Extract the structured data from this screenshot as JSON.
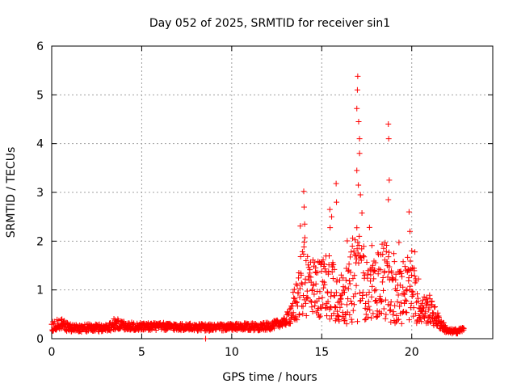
{
  "chart_data": {
    "type": "scatter",
    "title": "Day 052 of 2025, SRMTID for receiver sin1",
    "xlabel": "GPS time / hours",
    "ylabel": "SRMTID / TECUs",
    "xlim": [
      0,
      24.5
    ],
    "ylim": [
      0,
      6
    ],
    "xticks": [
      0,
      5,
      10,
      15,
      20
    ],
    "yticks": [
      0,
      1,
      2,
      3,
      4,
      5,
      6
    ],
    "grid": true,
    "marker": "+",
    "marker_color": "#ff0000",
    "series": [
      {
        "name": "sin1",
        "envelope": [
          {
            "x": 0.0,
            "base": 0.25,
            "spread": 0.1
          },
          {
            "x": 0.5,
            "base": 0.3,
            "spread": 0.12
          },
          {
            "x": 1.0,
            "base": 0.22,
            "spread": 0.08
          },
          {
            "x": 3.0,
            "base": 0.22,
            "spread": 0.08
          },
          {
            "x": 3.5,
            "base": 0.3,
            "spread": 0.12
          },
          {
            "x": 4.5,
            "base": 0.25,
            "spread": 0.08
          },
          {
            "x": 6.0,
            "base": 0.25,
            "spread": 0.08
          },
          {
            "x": 9.0,
            "base": 0.23,
            "spread": 0.07
          },
          {
            "x": 12.0,
            "base": 0.25,
            "spread": 0.08
          },
          {
            "x": 13.0,
            "base": 0.35,
            "spread": 0.08
          },
          {
            "x": 13.5,
            "base": 0.7,
            "spread": 0.4
          },
          {
            "x": 14.0,
            "base": 1.2,
            "spread": 0.8
          },
          {
            "x": 14.5,
            "base": 1.1,
            "spread": 0.6
          },
          {
            "x": 15.0,
            "base": 1.0,
            "spread": 0.6
          },
          {
            "x": 15.5,
            "base": 1.2,
            "spread": 0.8
          },
          {
            "x": 16.0,
            "base": 0.8,
            "spread": 0.5
          },
          {
            "x": 16.5,
            "base": 0.9,
            "spread": 0.6
          },
          {
            "x": 17.0,
            "base": 1.5,
            "spread": 1.2
          },
          {
            "x": 17.5,
            "base": 1.0,
            "spread": 0.6
          },
          {
            "x": 18.0,
            "base": 1.0,
            "spread": 0.6
          },
          {
            "x": 18.5,
            "base": 1.3,
            "spread": 0.9
          },
          {
            "x": 19.0,
            "base": 0.8,
            "spread": 0.5
          },
          {
            "x": 19.5,
            "base": 0.9,
            "spread": 0.6
          },
          {
            "x": 20.0,
            "base": 1.0,
            "spread": 0.7
          },
          {
            "x": 20.5,
            "base": 0.6,
            "spread": 0.3
          },
          {
            "x": 21.0,
            "base": 0.6,
            "spread": 0.3
          },
          {
            "x": 21.5,
            "base": 0.35,
            "spread": 0.15
          },
          {
            "x": 22.0,
            "base": 0.15,
            "spread": 0.05
          },
          {
            "x": 22.5,
            "base": 0.15,
            "spread": 0.05
          },
          {
            "x": 22.9,
            "base": 0.2,
            "spread": 0.05
          }
        ],
        "x_start": 0.0,
        "x_end": 22.9,
        "x_step": 0.0167,
        "outliers": [
          {
            "x": 17.0,
            "y": 5.38
          },
          {
            "x": 16.98,
            "y": 5.1
          },
          {
            "x": 16.95,
            "y": 4.72
          },
          {
            "x": 17.05,
            "y": 4.45
          },
          {
            "x": 17.1,
            "y": 4.1
          },
          {
            "x": 17.1,
            "y": 3.8
          },
          {
            "x": 16.95,
            "y": 3.45
          },
          {
            "x": 17.15,
            "y": 2.95
          },
          {
            "x": 18.7,
            "y": 4.4
          },
          {
            "x": 18.72,
            "y": 4.1
          },
          {
            "x": 18.75,
            "y": 3.25
          },
          {
            "x": 18.7,
            "y": 2.85
          },
          {
            "x": 14.0,
            "y": 3.02
          },
          {
            "x": 14.02,
            "y": 2.7
          },
          {
            "x": 14.05,
            "y": 2.35
          },
          {
            "x": 15.45,
            "y": 2.65
          },
          {
            "x": 15.55,
            "y": 2.5
          },
          {
            "x": 15.8,
            "y": 3.18
          },
          {
            "x": 15.82,
            "y": 2.8
          },
          {
            "x": 19.85,
            "y": 2.6
          },
          {
            "x": 19.9,
            "y": 2.2
          },
          {
            "x": 20.0,
            "y": 1.8
          },
          {
            "x": 8.55,
            "y": 0.0
          }
        ]
      }
    ]
  }
}
